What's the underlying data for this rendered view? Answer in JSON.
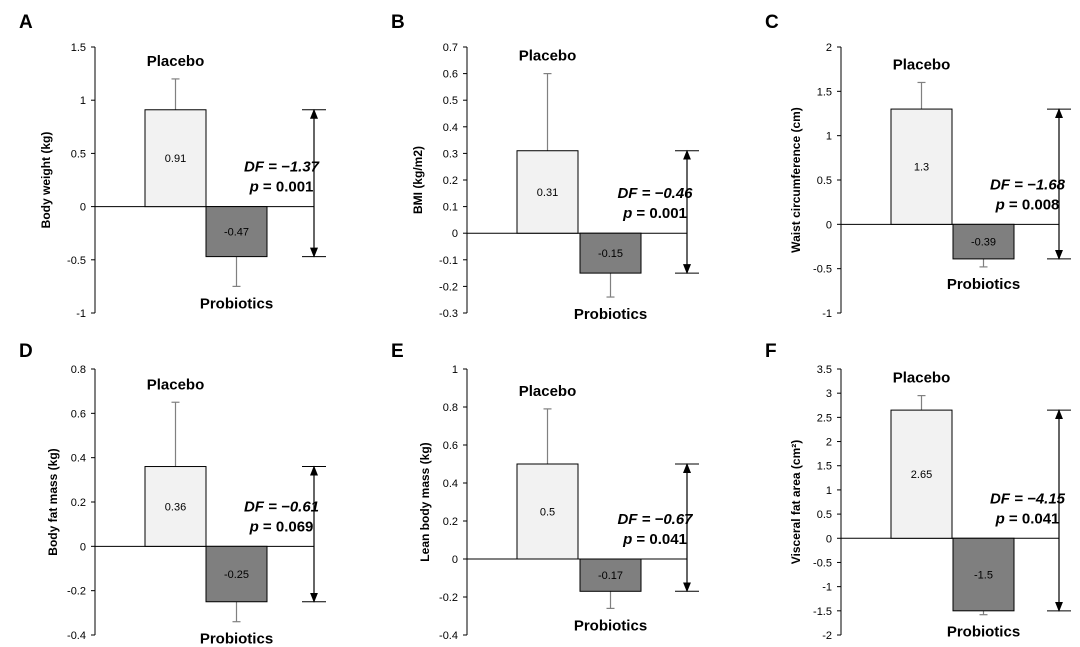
{
  "colors": {
    "placebo_fill": "#f2f2f2",
    "probiotics_fill": "#7f7f7f",
    "stroke": "#000000",
    "error_bar": "#808080"
  },
  "chart_data": [
    {
      "panel": "A",
      "type": "bar",
      "ylabel": "Body weight (kg)",
      "ylim": [
        -1,
        1.5
      ],
      "yticks": [
        -1,
        -0.5,
        0,
        0.5,
        1,
        1.5
      ],
      "ytick_labels": [
        "-1",
        "-0.5",
        "0",
        "0.5",
        "1",
        "1.5"
      ],
      "categories": [
        "Placebo",
        "Probiotics"
      ],
      "values": [
        0.91,
        -0.47
      ],
      "value_labels": [
        "0.91",
        "-0.47"
      ],
      "error_bar_ends": [
        1.2,
        -0.75
      ],
      "df_text": "DF = −1.37",
      "p_prefix": "p",
      "p_value": " = 0.001"
    },
    {
      "panel": "B",
      "type": "bar",
      "ylabel": "BMI (kg/m2)",
      "ylim": [
        -0.3,
        0.7
      ],
      "yticks": [
        -0.3,
        -0.2,
        -0.1,
        0,
        0.1,
        0.2,
        0.3,
        0.4,
        0.5,
        0.6,
        0.7
      ],
      "ytick_labels": [
        "-0.3",
        "-0.2",
        "-0.1",
        "0",
        "0.1",
        "0.2",
        "0.3",
        "0.4",
        "0.5",
        "0.6",
        "0.7"
      ],
      "categories": [
        "Placebo",
        "Probiotics"
      ],
      "values": [
        0.31,
        -0.15
      ],
      "value_labels": [
        "0.31",
        "-0.15"
      ],
      "error_bar_ends": [
        0.6,
        -0.24
      ],
      "df_text": "DF = −0.46",
      "p_prefix": "p",
      "p_value": " = 0.001"
    },
    {
      "panel": "C",
      "type": "bar",
      "ylabel": "Waist circumference (cm)",
      "ylim": [
        -1,
        2
      ],
      "yticks": [
        -1,
        -0.5,
        0,
        0.5,
        1,
        1.5,
        2
      ],
      "ytick_labels": [
        "-1",
        "-0.5",
        "0",
        "0.5",
        "1",
        "1.5",
        "2"
      ],
      "categories": [
        "Placebo",
        "Probiotics"
      ],
      "values": [
        1.3,
        -0.39
      ],
      "value_labels": [
        "1.3",
        "-0.39"
      ],
      "error_bar_ends": [
        1.6,
        -0.48
      ],
      "df_text": "DF = −1.68",
      "p_prefix": "p",
      "p_value": " = 0.008"
    },
    {
      "panel": "D",
      "type": "bar",
      "ylabel": "Body fat mass (kg)",
      "ylim": [
        -0.4,
        0.8
      ],
      "yticks": [
        -0.4,
        -0.2,
        0,
        0.2,
        0.4,
        0.6,
        0.8
      ],
      "ytick_labels": [
        "-0.4",
        "-0.2",
        "0",
        "0.2",
        "0.4",
        "0.6",
        "0.8"
      ],
      "categories": [
        "Placebo",
        "Probiotics"
      ],
      "values": [
        0.36,
        -0.25
      ],
      "value_labels": [
        "0.36",
        "-0.25"
      ],
      "error_bar_ends": [
        0.65,
        -0.34
      ],
      "df_text": "DF = −0.61",
      "p_prefix": "p",
      "p_value": " = 0.069"
    },
    {
      "panel": "E",
      "type": "bar",
      "ylabel": "Lean body mass (kg)",
      "ylim": [
        -0.4,
        1
      ],
      "yticks": [
        -0.4,
        -0.2,
        0,
        0.2,
        0.4,
        0.6,
        0.8,
        1
      ],
      "ytick_labels": [
        "-0.4",
        "-0.2",
        "0",
        "0.2",
        "0.4",
        "0.6",
        "0.8",
        "1"
      ],
      "categories": [
        "Placebo",
        "Probiotics"
      ],
      "values": [
        0.5,
        -0.17
      ],
      "value_labels": [
        "0.5",
        "-0.17"
      ],
      "error_bar_ends": [
        0.79,
        -0.26
      ],
      "df_text": "DF = −0.67",
      "p_prefix": "p",
      "p_value": " = 0.041"
    },
    {
      "panel": "F",
      "type": "bar",
      "ylabel": "Visceral fat area (cm²)",
      "ylim": [
        -2,
        3.5
      ],
      "yticks": [
        -2,
        -1.5,
        -1,
        -0.5,
        0,
        0.5,
        1,
        1.5,
        2,
        2.5,
        3,
        3.5
      ],
      "ytick_labels": [
        "-2",
        "-1.5",
        "-1",
        "-0.5",
        "0",
        "0.5",
        "1",
        "1.5",
        "2",
        "2.5",
        "3",
        "3.5"
      ],
      "categories": [
        "Placebo",
        "Probiotics"
      ],
      "values": [
        2.65,
        -1.5
      ],
      "value_labels": [
        "2.65",
        "-1.5"
      ],
      "error_bar_ends": [
        2.95,
        -1.58
      ],
      "df_text": "DF = −4.15",
      "p_prefix": "p",
      "p_value": " = 0.041"
    }
  ]
}
